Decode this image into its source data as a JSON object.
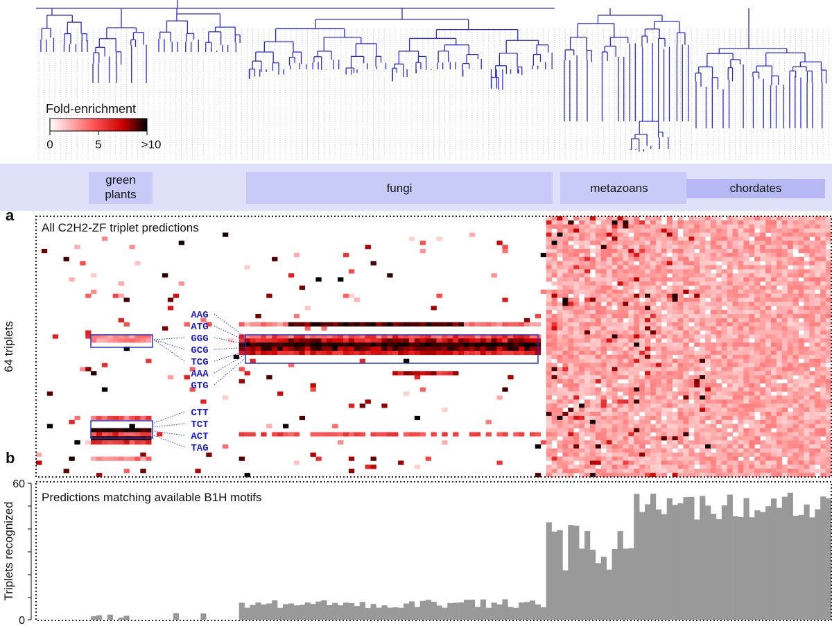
{
  "legend": {
    "title": "Fold-enrichment",
    "ticks": [
      "0",
      "5",
      ">10"
    ],
    "colors": [
      "#ffffff",
      "#ff3333",
      "#cc0000",
      "#000000"
    ]
  },
  "clades": [
    "green plants",
    "fungi",
    "metazoans",
    "chordates"
  ],
  "panel_a": {
    "letter": "a",
    "title": "All C2H2-ZF triplet predictions",
    "ylabel": "64 triplets",
    "triplets_group1": [
      "AAG",
      "ATG",
      "GGG",
      "GCG",
      "TCG",
      "AAA",
      "GTG"
    ],
    "triplets_group2": [
      "CTT",
      "TCT",
      "ACT",
      "TAG"
    ]
  },
  "panel_b": {
    "letter": "b",
    "title": "Predictions matching available B1H motifs",
    "ylabel": "Triplets recognized",
    "yticks": [
      "60",
      "0"
    ]
  },
  "colors": {
    "tree": "#2a2ad0",
    "clade_band": "#dfe1fb",
    "clade_box": "#c8cbf8",
    "bar": "#999999",
    "highlight_box": "#2233cc"
  },
  "chart_data": [
    {
      "type": "heatmap",
      "title": "All C2H2-ZF triplet predictions",
      "ylabel": "64 triplets",
      "n_rows": 64,
      "value_range": [
        0,
        10
      ],
      "scale_label": "Fold-enrichment",
      "clade_column_ranges": {
        "green plants": [
          10,
          21
        ],
        "fungi": [
          37,
          92
        ],
        "metazoans": [
          93,
          123
        ],
        "chordates": [
          123,
          145
        ]
      },
      "n_columns": 145,
      "highlighted_rows": {
        "green plants": [
          "GGG",
          "GCG",
          "TCG",
          "CTT",
          "TCT",
          "ACT",
          "TAG"
        ],
        "fungi": [
          "AAG",
          "ATG",
          "GGG",
          "GCG",
          "TCG",
          "AAA",
          "GTG"
        ]
      }
    },
    {
      "type": "bar",
      "title": "Predictions matching available B1H motifs",
      "ylabel": "Triplets recognized",
      "ylim": [
        0,
        60
      ],
      "n_columns": 145,
      "segment_levels": [
        {
          "columns": [
            0,
            36
          ],
          "approx_value": 1
        },
        {
          "columns": [
            37,
            92
          ],
          "approx_value": 7
        },
        {
          "columns": [
            93,
            108
          ],
          "approx_value": 30
        },
        {
          "columns": [
            109,
            145
          ],
          "approx_value": 50
        }
      ]
    }
  ]
}
